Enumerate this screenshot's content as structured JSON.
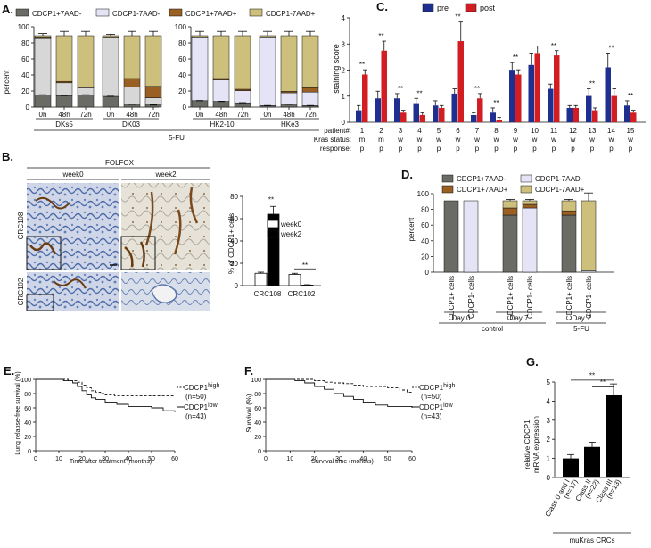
{
  "colors": {
    "cdcp1pos_neg": "#6b6b65",
    "cdcp1neg_neg": "#e4e4f6",
    "cdcp1pos_pos": "#9a5f22",
    "cdcp1neg_pos": "#cdbf7c",
    "light_grey": "#d7d7d7",
    "pre": "#1f2f8f",
    "post": "#d21d22"
  },
  "panel_labels": {
    "a": "A.",
    "b": "B.",
    "c": "C.",
    "d": "D.",
    "e": "E.",
    "f": "F.",
    "g": "G."
  },
  "legend": {
    "cdcp1pos_neg": "CDCP1+7AAD-",
    "cdcp1neg_neg": "CDCP1-7AAD-",
    "cdcp1pos_pos": "CDCP1+7AAD+",
    "cdcp1neg_pos": "CDCP1-7AAD+"
  },
  "panelA": {
    "ylabel": "percent",
    "yticks": [
      "0",
      "20",
      "40",
      "60",
      "80",
      "100"
    ],
    "treatment": "5-FU",
    "left_groups": [
      "DKs5",
      "DK03"
    ],
    "right_groups": [
      "HK2-10",
      "HKe3"
    ],
    "timepoints": [
      "0h",
      "48h",
      "72h"
    ],
    "chart_data": {
      "type": "stacked-bar",
      "categories": [
        "DKs5 0h",
        "DKs5 48h",
        "DKs5 72h",
        "DK03 0h",
        "DK03 48h",
        "DK03 72h",
        "HK2-10 0h",
        "HK2-10 48h",
        "HK2-10 72h",
        "HKe3 0h",
        "HKe3 48h",
        "HKe3 72h"
      ],
      "series_order": [
        "CDCP1+7AAD-",
        "CDCP1-7AAD-",
        "CDCP1+7AAD+",
        "CDCP1-7AAD+"
      ],
      "stacks": [
        [
          17,
          79,
          1,
          3
        ],
        [
          16,
          18,
          2,
          64
        ],
        [
          17,
          10,
          1,
          72
        ],
        [
          15,
          82,
          1,
          2
        ],
        [
          4,
          24,
          12,
          60
        ],
        [
          3,
          10,
          16,
          71
        ],
        [
          9,
          88,
          0,
          3
        ],
        [
          8,
          30,
          2,
          60
        ],
        [
          6,
          17,
          2,
          75
        ],
        [
          2,
          95,
          0,
          3
        ],
        [
          4,
          16,
          2,
          78
        ],
        [
          2,
          19,
          6,
          73
        ]
      ],
      "error_tops": [
        103,
        106,
        106,
        102,
        106,
        106,
        106,
        106,
        106,
        106,
        106,
        106
      ],
      "ylim": [
        0,
        110
      ]
    }
  },
  "panelB": {
    "header": "FOLFOX",
    "columns": [
      "week0",
      "week2"
    ],
    "rows": [
      "CRC108",
      "CRC102"
    ],
    "chart_data": {
      "type": "bar",
      "categories": [
        "CRC108",
        "CRC102"
      ],
      "series": [
        {
          "name": "week0",
          "values": [
            11,
            10
          ],
          "errors": [
            1,
            1
          ]
        },
        {
          "name": "week2",
          "values": [
            64,
            0.5
          ],
          "errors": [
            7,
            0.3
          ]
        }
      ],
      "ylabel": "% of CDCP1+ cells",
      "yticks": [
        "0",
        "20",
        "40",
        "60",
        "80"
      ],
      "ylim": [
        0,
        80
      ],
      "significance": [
        "**",
        "**"
      ]
    }
  },
  "panelC": {
    "ylabel": "staining score",
    "yticks": [
      "0",
      "1",
      "2",
      "3",
      "4"
    ],
    "legend": [
      "pre",
      "post"
    ],
    "row_labels": [
      "patient#:",
      "Kras status:",
      "response:"
    ],
    "patients": [
      "1",
      "2",
      "3",
      "4",
      "5",
      "6",
      "7",
      "8",
      "9",
      "10",
      "11",
      "12",
      "13",
      "14",
      "15"
    ],
    "kras": [
      "m",
      "m",
      "w",
      "w",
      "w",
      "w",
      "w",
      "w",
      "w",
      "w",
      "w",
      "w",
      "w",
      "w",
      "w"
    ],
    "response": [
      "p",
      "p",
      "p",
      "p",
      "p",
      "p",
      "p",
      "p",
      "p",
      "p",
      "p",
      "p",
      "p",
      "p",
      "p"
    ],
    "chart_data": {
      "type": "bar",
      "categories": [
        "1",
        "2",
        "3",
        "4",
        "5",
        "6",
        "7",
        "8",
        "9",
        "10",
        "11",
        "12",
        "13",
        "14",
        "15"
      ],
      "series": [
        {
          "name": "pre",
          "values": [
            0.5,
            1.0,
            1.0,
            0.8,
            0.7,
            1.2,
            0.3,
            0.4,
            2.2,
            2.4,
            1.4,
            0.6,
            1.1,
            2.3,
            0.7
          ],
          "errors": [
            0.2,
            0.3,
            0.2,
            0.2,
            0.2,
            0.2,
            0.1,
            0.2,
            0.3,
            0.5,
            0.2,
            0.1,
            0.3,
            0.6,
            0.2
          ]
        },
        {
          "name": "post",
          "values": [
            2.0,
            3.0,
            0.4,
            0.3,
            0.6,
            3.4,
            1.0,
            0.1,
            2.0,
            2.9,
            2.8,
            0.6,
            0.5,
            1.1,
            0.4
          ],
          "errors": [
            0.2,
            0.4,
            0.1,
            0.1,
            0.1,
            0.8,
            0.2,
            0.1,
            0.2,
            0.3,
            0.2,
            0.1,
            0.1,
            0.3,
            0.1
          ]
        }
      ],
      "ylim": [
        0,
        4
      ],
      "significance": [
        "**",
        "**",
        "**",
        "**",
        "",
        "**",
        "**",
        "**",
        "**",
        "",
        "**",
        "",
        "**",
        "**",
        "**"
      ]
    }
  },
  "panelD": {
    "ylabel": "percent",
    "yticks": [
      "0",
      "20",
      "40",
      "60",
      "80",
      "100"
    ],
    "legend_row1": [
      "CDCP1+7AAD-",
      "CDCP1-7AAD-"
    ],
    "legend_row2": [
      "CDCP1+7AAD+",
      "CDCP1-7AAD+"
    ],
    "xlabels": [
      "CDCP1+ cells",
      "CDCP1- cells",
      "CDCP1+ cells",
      "CDCP1- cells",
      "CDCP1+ cells",
      "CDCP1- cells"
    ],
    "days": [
      "Day 0",
      "Day 7",
      "Day 7"
    ],
    "groups": [
      "control",
      "5-FU"
    ],
    "chart_data": {
      "type": "stacked-bar",
      "categories": [
        "Day0 CDCP1+",
        "Day0 CDCP1-",
        "Day7 ctrl CDCP1+",
        "Day7 ctrl CDCP1-",
        "Day7 5-FU CDCP1+",
        "Day7 5-FU CDCP1-"
      ],
      "series_order": [
        "CDCP1+7AAD-",
        "CDCP1-7AAD-",
        "CDCP1+7AAD+",
        "CDCP1-7AAD+"
      ],
      "stacks": [
        [
          100,
          0,
          0,
          0
        ],
        [
          0,
          100,
          0,
          0
        ],
        [
          80,
          0,
          10,
          10
        ],
        [
          0,
          90,
          5,
          5
        ],
        [
          80,
          0,
          6,
          14
        ],
        [
          0,
          2,
          0,
          98
        ]
      ],
      "error_tops": [
        100,
        100,
        102,
        102,
        102,
        111
      ],
      "ylim": [
        0,
        110
      ]
    }
  },
  "panelE": {
    "ylabel": "Lung relapse-free survival (%)",
    "xlabel": "Time after treatment (months)",
    "xticks": [
      "0",
      "10",
      "20",
      "30",
      "40",
      "50",
      "60"
    ],
    "yticks": [
      "0",
      "20",
      "40",
      "60",
      "80",
      "100"
    ],
    "legend_high": "CDCP1",
    "legend_high_sup": "high",
    "legend_high_n": "(n=50)",
    "legend_low": "CDCP1",
    "legend_low_sup": "low",
    "legend_low_n": "(n=43)",
    "chart_data": {
      "type": "line",
      "series": [
        {
          "name": "CDCP1 high",
          "x": [
            0,
            10,
            14,
            18,
            20,
            22,
            24,
            26,
            28,
            30,
            34,
            40,
            60
          ],
          "y": [
            100,
            100,
            98,
            96,
            92,
            88,
            84,
            82,
            80,
            78,
            77,
            77,
            77
          ]
        },
        {
          "name": "CDCP1 low",
          "x": [
            0,
            8,
            12,
            16,
            18,
            20,
            22,
            24,
            26,
            30,
            35,
            40,
            50,
            55,
            60
          ],
          "y": [
            100,
            100,
            98,
            95,
            90,
            84,
            78,
            74,
            72,
            68,
            65,
            62,
            60,
            56,
            54
          ]
        }
      ],
      "xlim": [
        0,
        60
      ],
      "ylim": [
        0,
        100
      ]
    }
  },
  "panelF": {
    "ylabel": "Survival (%)",
    "xlabel": "Survival time (months)",
    "xticks": [
      "0",
      "10",
      "20",
      "30",
      "40",
      "50",
      "60"
    ],
    "yticks": [
      "0",
      "20",
      "40",
      "60",
      "80",
      "100"
    ],
    "legend_high": "CDCP1",
    "legend_high_sup": "high",
    "legend_high_n": "(n=50)",
    "legend_low": "CDCP1",
    "legend_low_sup": "low",
    "legend_low_n": "(n=43)",
    "chart_data": {
      "type": "line",
      "series": [
        {
          "name": "CDCP1 high",
          "x": [
            0,
            16,
            20,
            24,
            28,
            32,
            36,
            40,
            45,
            50,
            55,
            58,
            60
          ],
          "y": [
            100,
            100,
            98,
            96,
            95,
            94,
            92,
            90,
            90,
            88,
            85,
            82,
            80
          ]
        },
        {
          "name": "CDCP1 low",
          "x": [
            0,
            8,
            12,
            16,
            20,
            24,
            28,
            32,
            36,
            40,
            45,
            50,
            60
          ],
          "y": [
            100,
            100,
            98,
            95,
            90,
            86,
            80,
            76,
            72,
            68,
            64,
            62,
            60
          ]
        }
      ],
      "xlim": [
        0,
        60
      ],
      "ylim": [
        0,
        100
      ]
    }
  },
  "panelG": {
    "ylabel1": "relative CDCP1",
    "ylabel2": "mRNA expression",
    "yticks": [
      "0",
      "1",
      "2",
      "3",
      "4",
      "5"
    ],
    "xlabels": [
      "Class 0 and I",
      "Class II",
      "Class III"
    ],
    "ns": [
      "(n=17)",
      "(n=22)",
      "(n=13)"
    ],
    "group": "muKras CRCs",
    "chart_data": {
      "type": "bar",
      "categories": [
        "Class 0 and I",
        "Class II",
        "Class III"
      ],
      "values": [
        1.0,
        1.6,
        4.3
      ],
      "errors": [
        0.2,
        0.25,
        0.6
      ],
      "ylim": [
        0,
        5
      ],
      "significance": [
        "**",
        "**"
      ]
    }
  }
}
